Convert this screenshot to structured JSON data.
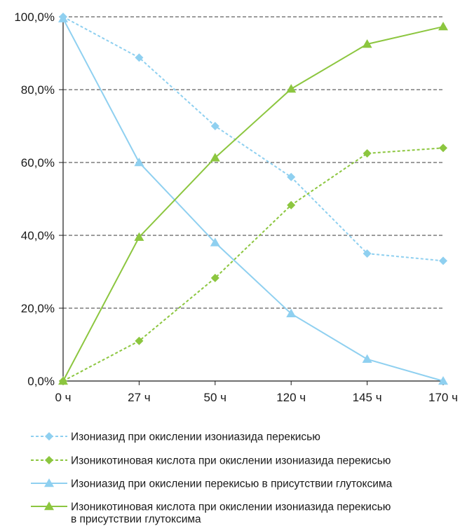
{
  "chart_data": {
    "type": "line",
    "categories": [
      "0 ч",
      "27 ч",
      "50 ч",
      "120 ч",
      "145 ч",
      "170 ч"
    ],
    "ylim": [
      0,
      100
    ],
    "yticks": [
      "0,0%",
      "20,0%",
      "40,0%",
      "60,0%",
      "80,0%",
      "100,0%"
    ],
    "ytick_values": [
      0,
      20,
      40,
      60,
      80,
      100
    ],
    "grid": true,
    "legend_position": "bottom",
    "series": [
      {
        "name": "Изониазид при окислении изониазида перекисью",
        "values": [
          100,
          88.8,
          70,
          56,
          35,
          33
        ],
        "color": "#8fd0f0",
        "style": "dashed",
        "marker": "diamond"
      },
      {
        "name": "Изоникотиновая кислота при окислении изониазида перекисью",
        "values": [
          0,
          11,
          28.3,
          48.3,
          62.5,
          64
        ],
        "color": "#8cc63f",
        "style": "dashed",
        "marker": "diamond"
      },
      {
        "name": "Изониазид при окислении перекисью в присутствии глутоксима",
        "values": [
          99.5,
          60,
          38,
          18.5,
          6,
          0
        ],
        "color": "#8fd0f0",
        "style": "solid",
        "marker": "triangle"
      },
      {
        "name": "Изоникотиновая кислота при окислении изониазида перекисью",
        "name_line2": "в присутствии глутоксима",
        "values": [
          0,
          39.5,
          61.3,
          80.2,
          92.5,
          97.3
        ],
        "color": "#8cc63f",
        "style": "solid",
        "marker": "triangle"
      }
    ]
  }
}
